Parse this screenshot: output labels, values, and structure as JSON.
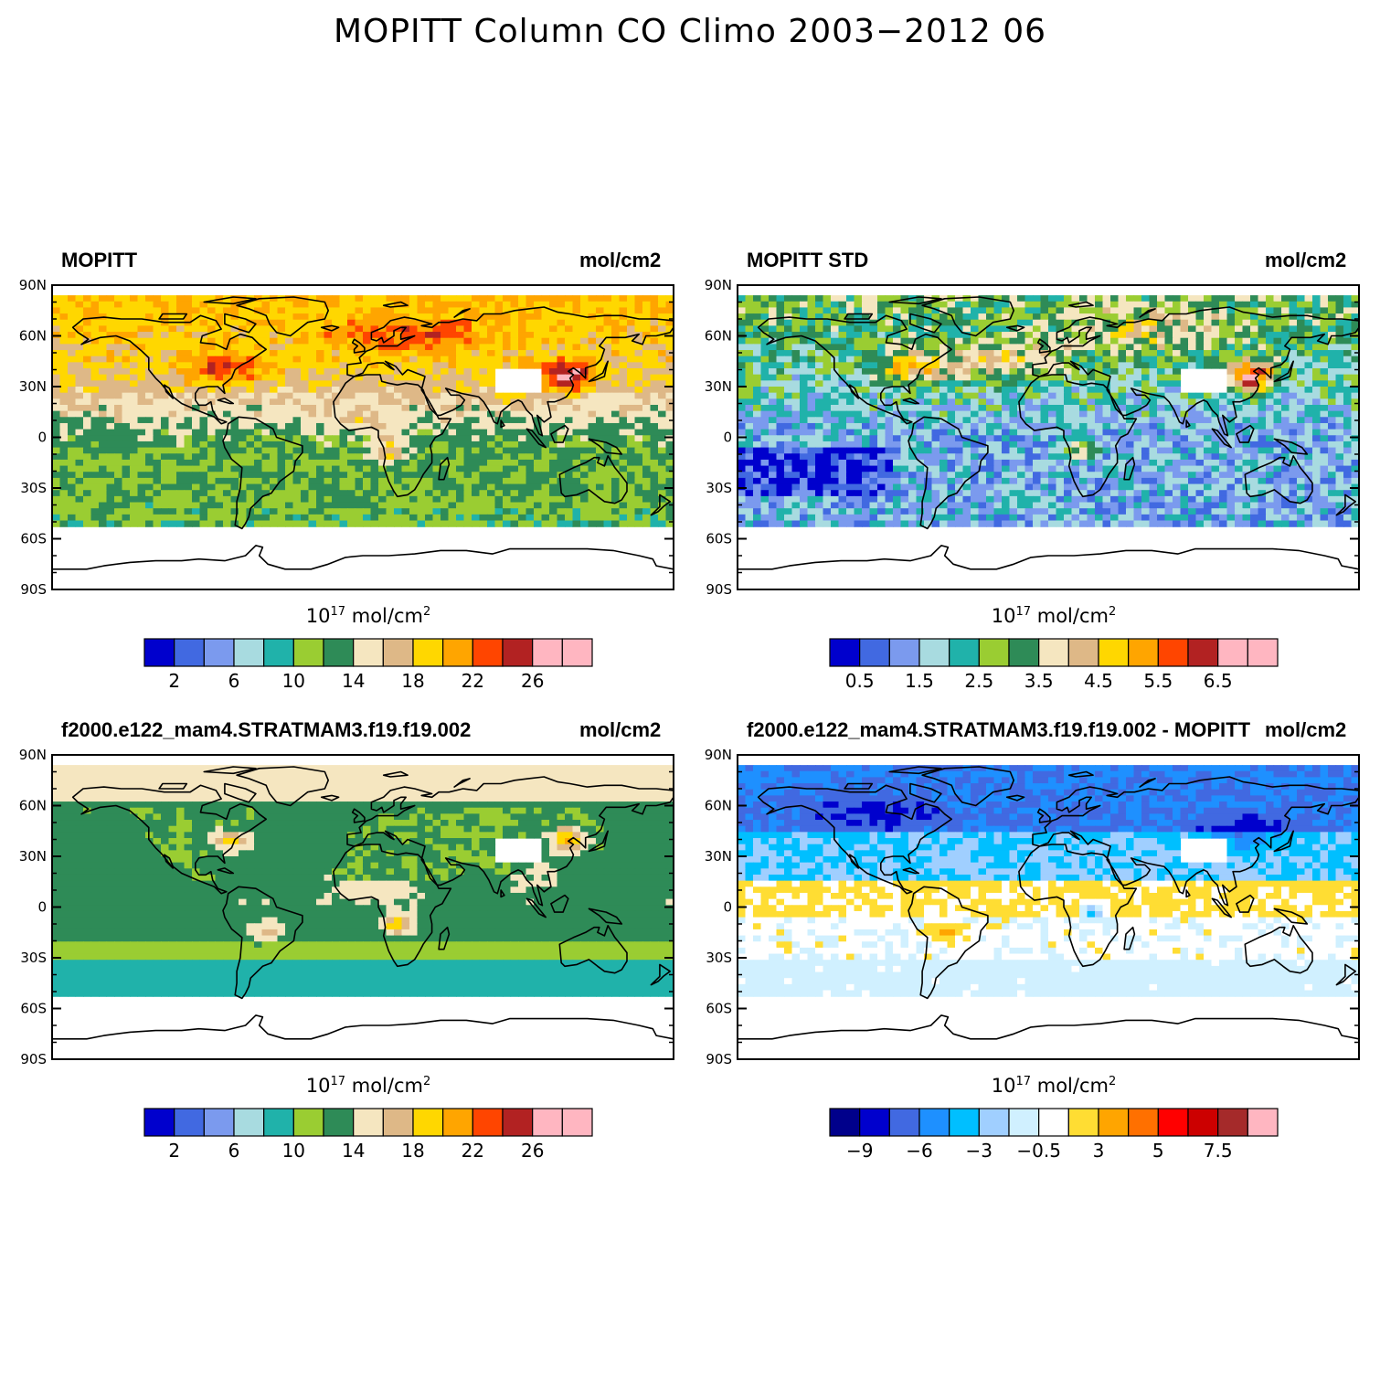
{
  "title": "MOPITT Column CO Climo 2003−2012 06",
  "lat_labels": [
    "90N",
    "60N",
    "30N",
    "0",
    "30S",
    "60S",
    "90S"
  ],
  "colorbar_unit": {
    "base": "10",
    "exponent": "17",
    "unit": "mol/cm",
    "power": "2"
  },
  "panels": [
    {
      "id": "mopitt",
      "title_left": "MOPITT",
      "title_right": "mol/cm2",
      "palette": [
        "#0000cd",
        "#4169e1",
        "#7b9aee",
        "#a8dbe0",
        "#20b2aa",
        "#9acd32",
        "#2e8b57",
        "#f5e6c0",
        "#deb887",
        "#ffd700",
        "#ffa500",
        "#ff4500",
        "#b22222",
        "#ffb6c1",
        "#ffb6c1"
      ],
      "ticks": [
        "2",
        "6",
        "10",
        "14",
        "18",
        "22",
        "26"
      ],
      "field": "co_obs"
    },
    {
      "id": "mopitt-std",
      "title_left": "MOPITT STD",
      "title_right": "mol/cm2",
      "palette": [
        "#0000cd",
        "#4169e1",
        "#7b9aee",
        "#a8dbe0",
        "#20b2aa",
        "#9acd32",
        "#2e8b57",
        "#f5e6c0",
        "#deb887",
        "#ffd700",
        "#ffa500",
        "#ff4500",
        "#b22222",
        "#ffb6c1",
        "#ffb6c1"
      ],
      "ticks": [
        "0.5",
        "1.5",
        "2.5",
        "3.5",
        "4.5",
        "5.5",
        "6.5"
      ],
      "field": "co_std"
    },
    {
      "id": "model",
      "title_left": "f2000.e122_mam4.STRATMAM3.f19.f19.002",
      "title_right": "mol/cm2",
      "palette": [
        "#0000cd",
        "#4169e1",
        "#7b9aee",
        "#a8dbe0",
        "#20b2aa",
        "#9acd32",
        "#2e8b57",
        "#f5e6c0",
        "#deb887",
        "#ffd700",
        "#ffa500",
        "#ff4500",
        "#b22222",
        "#ffb6c1",
        "#ffb6c1"
      ],
      "ticks": [
        "2",
        "6",
        "10",
        "14",
        "18",
        "22",
        "26"
      ],
      "field": "co_model"
    },
    {
      "id": "model-minus-mopitt",
      "title_left": "f2000.e122_mam4.STRATMAM3.f19.f19.002 - MOPITT",
      "title_right": "mol/cm2",
      "palette": [
        "#00008b",
        "#0000cd",
        "#4169e1",
        "#1e90ff",
        "#00bfff",
        "#a0cfff",
        "#d0f0ff",
        "#ffffff",
        "#ffdd33",
        "#ffa500",
        "#ff7000",
        "#ff0000",
        "#cc0000",
        "#a52a2a",
        "#ffb6c1"
      ],
      "ticks": [
        "−9",
        "−6",
        "−3",
        "−0.5",
        "3",
        "5",
        "7.5"
      ],
      "field": "co_diff"
    }
  ]
}
